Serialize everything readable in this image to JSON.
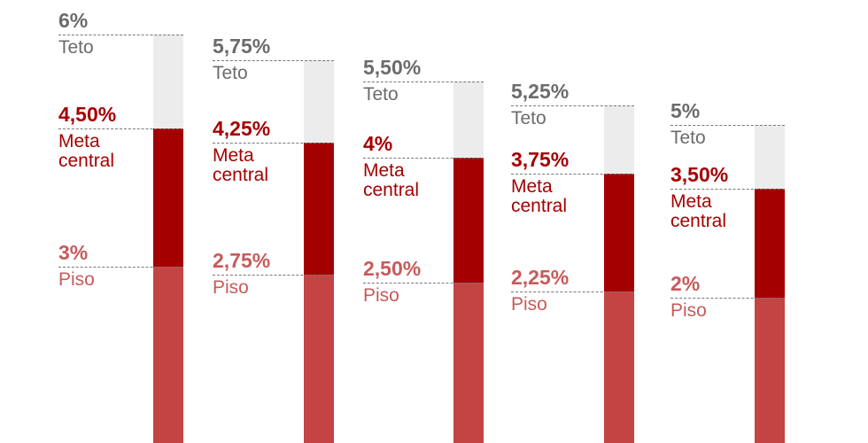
{
  "chart_data": {
    "type": "bar",
    "stacked": true,
    "categories": [
      "",
      "",
      "",
      "",
      ""
    ],
    "series": [
      {
        "name": "Teto",
        "values": [
          6,
          5.75,
          5.5,
          5.25,
          5
        ],
        "labels": [
          "6%",
          "5,75%",
          "5,50%",
          "5,25%",
          "5%"
        ]
      },
      {
        "name": "Meta central",
        "values": [
          4.5,
          4.25,
          4,
          3.75,
          3.5
        ],
        "labels": [
          "4,50%",
          "4,25%",
          "4%",
          "3,75%",
          "3,50%"
        ]
      },
      {
        "name": "Piso",
        "values": [
          3,
          2.75,
          2.5,
          2.25,
          2
        ],
        "labels": [
          "3%",
          "2,75%",
          "2,50%",
          "2,25%",
          "2%"
        ]
      }
    ],
    "series_labels": {
      "teto": "Teto",
      "meta": "Meta central",
      "piso": "Piso"
    },
    "colors": {
      "teto_band": "#ececec",
      "meta_band": "#a50000",
      "piso_band": "#c44444",
      "teto_text": "#6b6b6b",
      "meta_text": "#a50000",
      "piso_text": "#c85a5a"
    },
    "grid": false,
    "legend": "none"
  }
}
